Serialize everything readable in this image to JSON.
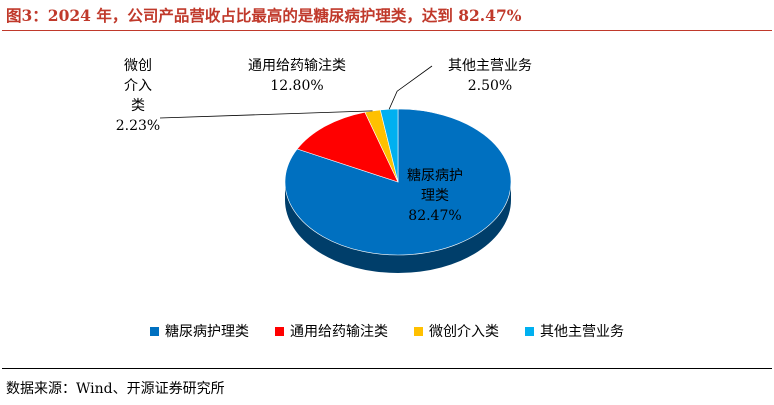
{
  "header": {
    "title": "图3：2024 年，公司产品营收占比最高的是糖尿病护理类，达到 82.47%"
  },
  "footer": {
    "source": "数据来源：Wind、开源证券研究所"
  },
  "chart_data": {
    "type": "pie",
    "style": "3d",
    "title": "",
    "legend_position": "bottom",
    "slices": [
      {
        "label": "糖尿病护理类",
        "value": 82.47,
        "value_label": "82.47%",
        "color": "#0070c0"
      },
      {
        "label": "通用给药输注类",
        "value": 12.8,
        "value_label": "12.80%",
        "color": "#ff0000"
      },
      {
        "label": "微创介入类",
        "value": 2.23,
        "value_label": "2.23%",
        "color": "#ffc000"
      },
      {
        "label": "其他主营业务",
        "value": 2.5,
        "value_label": "2.50%",
        "color": "#00b0f0"
      }
    ]
  }
}
